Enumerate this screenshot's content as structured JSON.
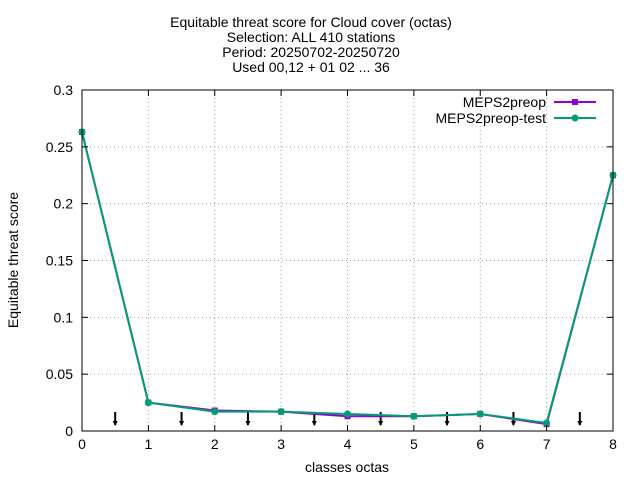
{
  "chart_data": {
    "type": "line",
    "title_lines": [
      "Equitable threat score  for Cloud cover (octas)",
      "Selection: ALL    410 stations",
      "Period: 20250702-20250720",
      "Used 00,12 + 01 02 ... 36"
    ],
    "xlabel": "classes octas",
    "ylabel": "Equitable threat score",
    "xlim": [
      0,
      8
    ],
    "ylim": [
      0,
      0.3
    ],
    "xticks": [
      "0",
      "1",
      "2",
      "3",
      "4",
      "5",
      "6",
      "7",
      "8"
    ],
    "yticks": [
      "0",
      "0.05",
      "0.1",
      "0.15",
      "0.2",
      "0.25",
      "0.3"
    ],
    "grid": true,
    "legend_position": "top-right",
    "x": [
      0,
      1,
      2,
      3,
      4,
      5,
      6,
      7,
      8
    ],
    "series": [
      {
        "name": "MEPS2preop",
        "color": "#9400d3",
        "marker": "square",
        "values": [
          0.263,
          0.025,
          0.018,
          0.017,
          0.013,
          0.013,
          0.015,
          0.006,
          0.225
        ]
      },
      {
        "name": "MEPS2preop-test",
        "color": "#009e73",
        "marker": "circle",
        "values": [
          0.263,
          0.025,
          0.017,
          0.017,
          0.015,
          0.013,
          0.015,
          0.007,
          0.225
        ]
      }
    ],
    "arrow_markers_x": [
      0.5,
      1.5,
      2.5,
      3.5,
      4.5,
      5.5,
      6.5,
      7.5
    ]
  }
}
